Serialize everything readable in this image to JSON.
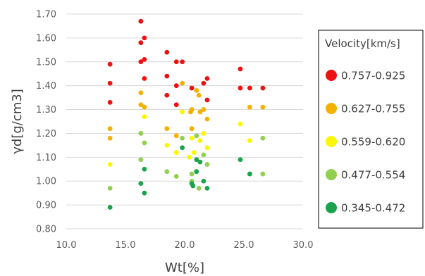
{
  "chart_data": {
    "type": "scatter",
    "xlabel": "Wt[%]",
    "ylabel": "γd[g/cm3]",
    "xlim": [
      10.0,
      30.0
    ],
    "ylim": [
      0.8,
      1.7
    ],
    "x_ticks": [
      "10.0",
      "15.0",
      "20.0",
      "25.0",
      "30.0"
    ],
    "y_ticks": [
      "0.80",
      "0.90",
      "1.00",
      "1.10",
      "1.20",
      "1.30",
      "1.40",
      "1.50",
      "1.60",
      "1.70"
    ],
    "grid": "horizontal",
    "legend_placement": "right",
    "legend_title": "Velocity[km/s]",
    "series": [
      {
        "name": "0.757-0.925",
        "color": "#ee1111",
        "points": [
          [
            13.7,
            1.49
          ],
          [
            13.7,
            1.41
          ],
          [
            13.7,
            1.33
          ],
          [
            16.3,
            1.67
          ],
          [
            16.3,
            1.58
          ],
          [
            16.3,
            1.5
          ],
          [
            16.6,
            1.6
          ],
          [
            16.6,
            1.51
          ],
          [
            16.6,
            1.43
          ],
          [
            18.5,
            1.54
          ],
          [
            18.5,
            1.44
          ],
          [
            18.5,
            1.36
          ],
          [
            19.3,
            1.5
          ],
          [
            19.3,
            1.4
          ],
          [
            19.3,
            1.32
          ],
          [
            19.8,
            1.5
          ],
          [
            20.6,
            1.39
          ],
          [
            21.6,
            1.41
          ],
          [
            21.9,
            1.43
          ],
          [
            21.9,
            1.34
          ],
          [
            24.7,
            1.47
          ],
          [
            24.7,
            1.39
          ],
          [
            25.5,
            1.39
          ],
          [
            26.6,
            1.39
          ]
        ]
      },
      {
        "name": "0.627-0.755",
        "color": "#f5b100",
        "points": [
          [
            13.7,
            1.22
          ],
          [
            13.7,
            1.18
          ],
          [
            16.3,
            1.37
          ],
          [
            16.3,
            1.32
          ],
          [
            16.6,
            1.31
          ],
          [
            18.5,
            1.22
          ],
          [
            19.3,
            1.19
          ],
          [
            19.8,
            1.41
          ],
          [
            20.5,
            1.29
          ],
          [
            20.6,
            1.3
          ],
          [
            20.6,
            1.22
          ],
          [
            21.0,
            1.38
          ],
          [
            21.2,
            1.36
          ],
          [
            21.3,
            1.29
          ],
          [
            21.6,
            1.3
          ],
          [
            21.9,
            1.26
          ],
          [
            25.5,
            1.31
          ],
          [
            26.6,
            1.31
          ]
        ]
      },
      {
        "name": "0.559-0.620",
        "color": "#f8f800",
        "points": [
          [
            13.7,
            1.07
          ],
          [
            16.6,
            1.27
          ],
          [
            18.5,
            1.15
          ],
          [
            19.3,
            1.12
          ],
          [
            19.8,
            1.29
          ],
          [
            20.4,
            1.1
          ],
          [
            20.6,
            1.18
          ],
          [
            20.8,
            1.12
          ],
          [
            21.3,
            1.17
          ],
          [
            21.6,
            1.2
          ],
          [
            21.9,
            1.14
          ],
          [
            24.7,
            1.24
          ],
          [
            25.5,
            1.17
          ]
        ]
      },
      {
        "name": "0.477-0.554",
        "color": "#92d050",
        "points": [
          [
            13.7,
            0.97
          ],
          [
            16.3,
            1.2
          ],
          [
            16.3,
            1.09
          ],
          [
            16.6,
            1.16
          ],
          [
            18.5,
            1.04
          ],
          [
            19.3,
            1.02
          ],
          [
            19.8,
            1.18
          ],
          [
            20.6,
            1.03
          ],
          [
            20.6,
            1.0
          ],
          [
            21.0,
            1.19
          ],
          [
            21.2,
            0.97
          ],
          [
            21.6,
            1.11
          ],
          [
            21.9,
            1.07
          ],
          [
            25.5,
            1.03
          ],
          [
            26.6,
            1.18
          ],
          [
            26.6,
            1.03
          ]
        ]
      },
      {
        "name": "0.345-0.472",
        "color": "#1aa34a",
        "points": [
          [
            13.7,
            0.89
          ],
          [
            16.3,
            0.99
          ],
          [
            16.6,
            1.05
          ],
          [
            16.6,
            0.95
          ],
          [
            19.8,
            1.14
          ],
          [
            20.6,
            0.99
          ],
          [
            20.7,
            0.98
          ],
          [
            21.0,
            1.04
          ],
          [
            21.0,
            1.09
          ],
          [
            21.3,
            1.08
          ],
          [
            21.6,
            1.0
          ],
          [
            21.9,
            0.97
          ],
          [
            24.7,
            1.09
          ],
          [
            25.5,
            1.03
          ]
        ]
      }
    ]
  }
}
